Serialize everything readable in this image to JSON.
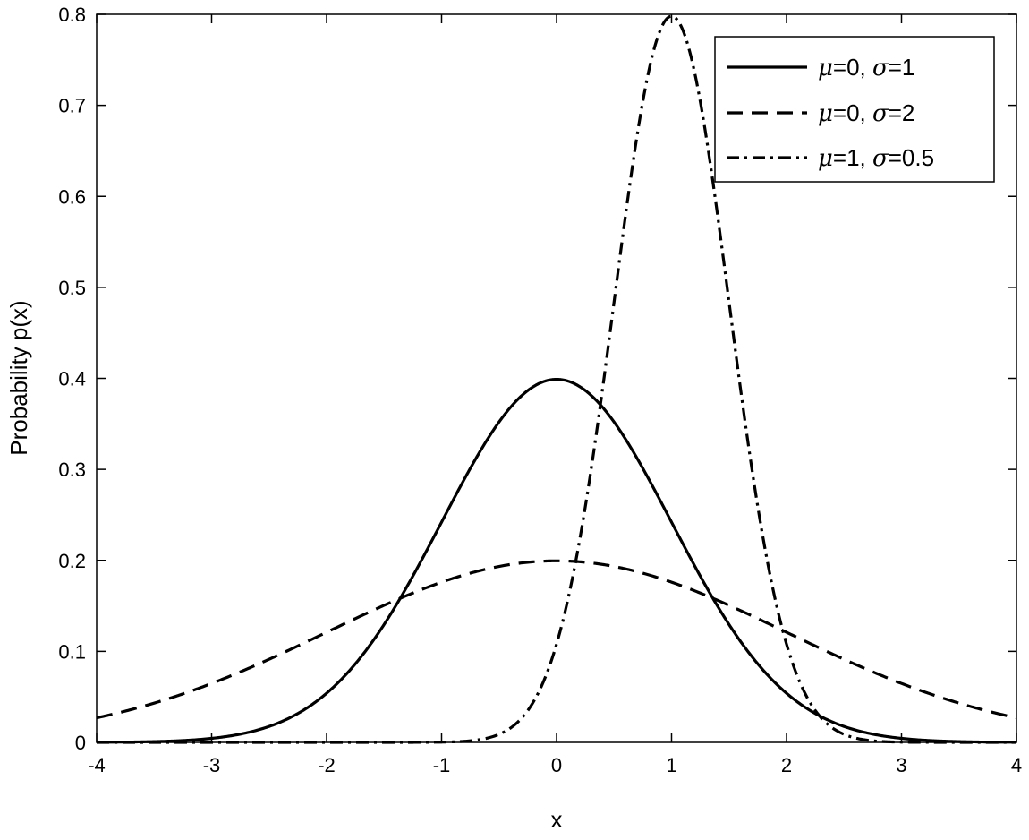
{
  "chart_data": {
    "type": "line",
    "title": "",
    "xlabel": "x",
    "ylabel": "Probability p(x)",
    "xlim": [
      -4,
      4
    ],
    "ylim": [
      0,
      0.8
    ],
    "xticks": [
      -4,
      -3,
      -2,
      -1,
      0,
      1,
      2,
      3,
      4
    ],
    "yticks": [
      0,
      0.1,
      0.2,
      0.3,
      0.4,
      0.5,
      0.6,
      0.7,
      0.8
    ],
    "xtick_labels": [
      "-4",
      "-3",
      "-2",
      "-1",
      "0",
      "1",
      "2",
      "3",
      "4"
    ],
    "ytick_labels": [
      "0",
      "0.1",
      "0.2",
      "0.3",
      "0.4",
      "0.5",
      "0.6",
      "0.7",
      "0.8"
    ],
    "grid": false,
    "legend_position": "top-right",
    "line_color": "#000000",
    "series": [
      {
        "name": "μ=0, σ=1",
        "mu": 0,
        "sigma": 1,
        "style": "solid",
        "legend": {
          "mu_symbol": "μ",
          "mu_text": "=0, ",
          "sigma_symbol": "σ",
          "sigma_text": "=1"
        }
      },
      {
        "name": "μ=0, σ=2",
        "mu": 0,
        "sigma": 2,
        "style": "dashed",
        "legend": {
          "mu_symbol": "μ",
          "mu_text": "=0, ",
          "sigma_symbol": "σ",
          "sigma_text": "=2"
        }
      },
      {
        "name": "μ=1, σ=0.5",
        "mu": 1,
        "sigma": 0.5,
        "style": "dashdot",
        "legend": {
          "mu_symbol": "μ",
          "mu_text": "=1, ",
          "sigma_symbol": "σ",
          "sigma_text": "=0.5"
        }
      }
    ]
  }
}
